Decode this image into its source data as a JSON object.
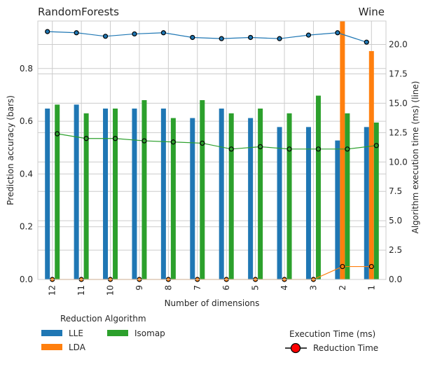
{
  "chart_data": {
    "type": "bar",
    "title_left": "RandomForests",
    "title_right": "Wine",
    "xlabel": "Number of dimensions",
    "ylabel_left": "Prediction accuracy (bars)",
    "ylabel_right": "Algorithm execution time (ms) (line)",
    "categories": [
      "12",
      "11",
      "10",
      "9",
      "8",
      "7",
      "6",
      "5",
      "4",
      "3",
      "2",
      "1"
    ],
    "ylim_left": [
      0,
      0.98
    ],
    "yticks_left": [
      "0.0",
      "0.2",
      "0.4",
      "0.6",
      "0.8"
    ],
    "ylim_right": [
      0,
      22.0
    ],
    "yticks_right": [
      "0.0",
      "2.5",
      "5.0",
      "7.5",
      "10.0",
      "12.5",
      "15.0",
      "17.5",
      "20.0"
    ],
    "grid": true,
    "bar_series": [
      {
        "name": "LLE",
        "color": "#1f77b4",
        "values": [
          0.648,
          0.663,
          0.648,
          0.648,
          0.648,
          0.612,
          0.648,
          0.612,
          0.578,
          0.578,
          0.527,
          0.578
        ]
      },
      {
        "name": "LDA",
        "color": "#ff7f0e",
        "values": [
          0,
          0,
          0,
          0,
          0,
          0,
          0,
          0,
          0,
          0,
          0.98,
          0.866
        ]
      },
      {
        "name": "Isomap",
        "color": "#2ca02c",
        "values": [
          0.663,
          0.63,
          0.648,
          0.68,
          0.612,
          0.68,
          0.63,
          0.648,
          0.63,
          0.697,
          0.63,
          0.595
        ]
      }
    ],
    "line_series": [
      {
        "bar": "LLE",
        "color": "#1f77b4",
        "values": [
          21.1,
          21.0,
          20.7,
          20.9,
          21.0,
          20.6,
          20.5,
          20.6,
          20.5,
          20.8,
          21.0,
          20.2
        ]
      },
      {
        "bar": "LDA",
        "color": "#ff7f0e",
        "values": [
          0,
          0,
          0,
          0,
          0,
          0,
          0,
          0,
          0,
          0,
          1.1,
          1.1
        ]
      },
      {
        "bar": "Isomap",
        "color": "#2ca02c",
        "values": [
          12.4,
          12.0,
          12.0,
          11.8,
          11.7,
          11.6,
          11.1,
          11.3,
          11.1,
          11.1,
          11.1,
          11.4
        ]
      }
    ],
    "legend_algorithms": {
      "title": "Reduction Algorithm",
      "position": "bottom-left",
      "entries": [
        "LLE",
        "LDA",
        "Isomap"
      ]
    },
    "legend_time": {
      "title": "Execution Time (ms)",
      "position": "bottom-right",
      "entry": "Reduction Time",
      "marker_color": "#ff0000"
    }
  }
}
